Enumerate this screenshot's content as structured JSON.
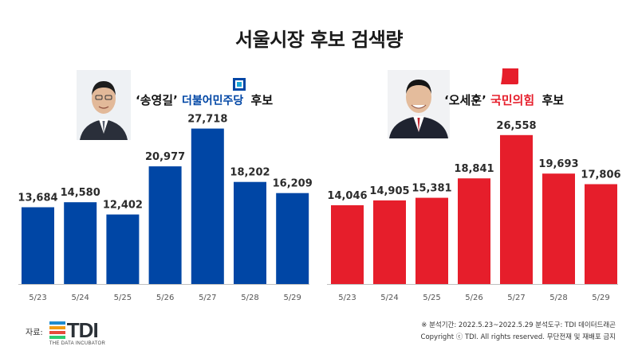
{
  "title": "서울시장 후보 검색량",
  "left_candidate": {
    "name": "‘송영길’",
    "party": "더불어민주당",
    "suffix": "후보",
    "color": "#0046a5"
  },
  "right_candidate": {
    "name": "‘오세훈’",
    "party": "국민의힘",
    "suffix": "후보",
    "color": "#e61e2b"
  },
  "chart_data": [
    {
      "type": "bar",
      "categories": [
        "5/23",
        "5/24",
        "5/25",
        "5/26",
        "5/27",
        "5/28",
        "5/29"
      ],
      "values": [
        13684,
        14580,
        12402,
        20977,
        27718,
        18202,
        16209
      ],
      "value_labels": [
        "13,684",
        "14,580",
        "12,402",
        "20,977",
        "27,718",
        "18,202",
        "16,209"
      ],
      "color": "#0046a5",
      "ylim": [
        0,
        30500
      ]
    },
    {
      "type": "bar",
      "categories": [
        "5/23",
        "5/24",
        "5/25",
        "5/26",
        "5/27",
        "5/28",
        "5/29"
      ],
      "values": [
        14046,
        14905,
        15381,
        18841,
        26558,
        19693,
        17806
      ],
      "value_labels": [
        "14,046",
        "14,905",
        "15,381",
        "18,841",
        "26,558",
        "19,693",
        "17,806"
      ],
      "color": "#e61e2b",
      "ylim": [
        0,
        30500
      ]
    }
  ],
  "footer": {
    "source_label": "자료:",
    "logo_text": "TDI",
    "logo_sub": "THE DATA INCUBATOR",
    "note": "※ 분석기간: 2022.5.23~2022.5.29  분석도구: TDI 데이터드래곤",
    "copyright": "Copyright ⓒ TDI. All rights reserved. 무단전재 및 재배포 금지"
  },
  "colors": {
    "democratic_blue": "#0046a5",
    "democratic_cyan": "#1aa7d8",
    "ppp_red": "#e61e2b",
    "axis": "#bfbfbf"
  }
}
